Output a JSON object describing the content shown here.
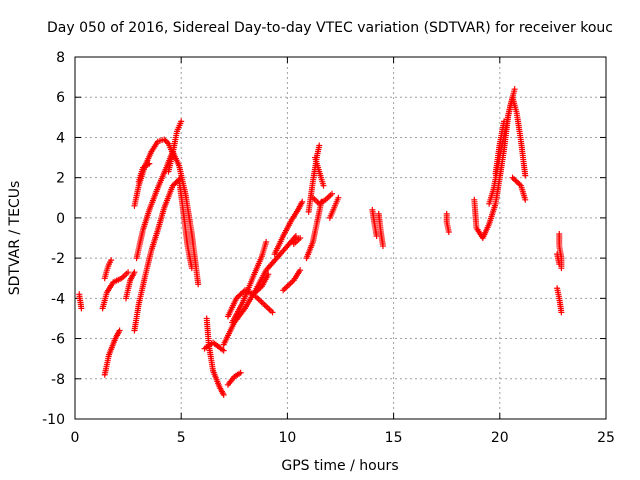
{
  "colors": {
    "background": "#ffffff",
    "axis": "#000000",
    "grid": "#a0a0a0",
    "series": "#ff0000"
  },
  "chart_data": {
    "type": "scatter",
    "title": "Day 050 of 2016, Sidereal Day-to-day VTEC variation (SDTVAR) for receiver kouc",
    "xlabel": "GPS time / hours",
    "ylabel": "SDTVAR / TECUs",
    "xlim": [
      0,
      25
    ],
    "ylim": [
      -10,
      8
    ],
    "xticks": [
      0,
      5,
      10,
      15,
      20,
      25
    ],
    "yticks": [
      -10,
      -8,
      -6,
      -4,
      -2,
      0,
      2,
      4,
      6,
      8
    ],
    "grid": true,
    "marker": "plus",
    "series": [
      {
        "name": "SDTVAR",
        "tracks": [
          [
            [
              0.2,
              -3.8
            ],
            [
              0.3,
              -4.5
            ]
          ],
          [
            [
              1.4,
              -3.0
            ],
            [
              1.5,
              -2.6
            ],
            [
              1.6,
              -2.3
            ],
            [
              1.7,
              -2.1
            ]
          ],
          [
            [
              1.3,
              -4.5
            ],
            [
              1.5,
              -3.7
            ],
            [
              1.8,
              -3.2
            ],
            [
              2.2,
              -3.0
            ],
            [
              2.5,
              -2.7
            ]
          ],
          [
            [
              1.4,
              -7.8
            ],
            [
              1.6,
              -6.8
            ],
            [
              1.9,
              -6.0
            ],
            [
              2.1,
              -5.6
            ]
          ],
          [
            [
              2.4,
              -4.0
            ],
            [
              2.6,
              -3.1
            ],
            [
              2.8,
              -2.7
            ]
          ],
          [
            [
              2.8,
              -5.6
            ],
            [
              3.0,
              -4.3
            ],
            [
              3.3,
              -2.9
            ],
            [
              3.6,
              -1.6
            ],
            [
              3.9,
              -0.6
            ],
            [
              4.2,
              0.5
            ],
            [
              4.6,
              1.6
            ],
            [
              5.0,
              2.0
            ]
          ],
          [
            [
              2.9,
              -2.0
            ],
            [
              3.2,
              -0.6
            ],
            [
              3.5,
              0.4
            ],
            [
              3.9,
              1.5
            ],
            [
              4.3,
              2.5
            ],
            [
              4.6,
              3.3
            ],
            [
              4.9,
              2.6
            ],
            [
              5.2,
              1.2
            ],
            [
              5.5,
              -0.8
            ],
            [
              5.8,
              -3.3
            ]
          ],
          [
            [
              2.8,
              0.6
            ],
            [
              3.0,
              1.6
            ],
            [
              3.3,
              2.6
            ],
            [
              3.6,
              3.3
            ],
            [
              3.9,
              3.8
            ],
            [
              4.2,
              3.9
            ],
            [
              4.4,
              3.7
            ],
            [
              4.6,
              3.2
            ]
          ],
          [
            [
              3.0,
              1.8
            ],
            [
              3.2,
              2.5
            ],
            [
              3.5,
              2.7
            ]
          ],
          [
            [
              4.4,
              2.3
            ],
            [
              4.6,
              3.2
            ],
            [
              4.8,
              4.3
            ],
            [
              5.0,
              4.8
            ]
          ],
          [
            [
              4.9,
              1.9
            ],
            [
              5.1,
              0.3
            ],
            [
              5.3,
              -1.4
            ],
            [
              5.5,
              -2.5
            ]
          ],
          [
            [
              6.2,
              -5.0
            ],
            [
              6.3,
              -6.3
            ],
            [
              6.5,
              -7.6
            ],
            [
              6.8,
              -8.4
            ],
            [
              7.0,
              -8.8
            ]
          ],
          [
            [
              6.1,
              -6.5
            ],
            [
              6.5,
              -6.2
            ],
            [
              7.0,
              -6.6
            ]
          ],
          [
            [
              7.2,
              -8.3
            ],
            [
              7.5,
              -7.9
            ],
            [
              7.8,
              -7.7
            ]
          ],
          [
            [
              7.0,
              -6.3
            ],
            [
              7.5,
              -5.2
            ],
            [
              8.0,
              -4.5
            ],
            [
              8.5,
              -3.6
            ],
            [
              9.0,
              -2.6
            ],
            [
              9.5,
              -2.0
            ],
            [
              10.0,
              -1.4
            ],
            [
              10.4,
              -0.9
            ]
          ],
          [
            [
              7.2,
              -4.9
            ],
            [
              7.6,
              -4.0
            ],
            [
              8.0,
              -3.6
            ],
            [
              8.4,
              -3.8
            ],
            [
              8.8,
              -3.4
            ],
            [
              9.1,
              -2.8
            ]
          ],
          [
            [
              7.4,
              -5.2
            ],
            [
              7.9,
              -4.2
            ],
            [
              8.4,
              -2.9
            ],
            [
              8.8,
              -1.9
            ],
            [
              9.0,
              -1.2
            ]
          ],
          [
            [
              8.5,
              -3.9
            ],
            [
              9.0,
              -4.4
            ],
            [
              9.3,
              -4.7
            ]
          ],
          [
            [
              9.4,
              -1.8
            ],
            [
              9.8,
              -0.9
            ],
            [
              10.2,
              -0.1
            ],
            [
              10.5,
              0.4
            ],
            [
              10.7,
              0.8
            ]
          ],
          [
            [
              9.8,
              -3.6
            ],
            [
              10.3,
              -3.1
            ],
            [
              10.6,
              -2.6
            ]
          ],
          [
            [
              10.3,
              -1.3
            ],
            [
              10.6,
              -1.0
            ]
          ],
          [
            [
              10.9,
              -2.0
            ],
            [
              11.2,
              -1.2
            ],
            [
              11.4,
              -0.2
            ],
            [
              11.6,
              0.8
            ]
          ],
          [
            [
              11.0,
              0.3
            ],
            [
              11.2,
              1.8
            ],
            [
              11.4,
              3.1
            ],
            [
              11.5,
              3.6
            ]
          ],
          [
            [
              11.2,
              1.0
            ],
            [
              11.5,
              0.7
            ],
            [
              11.8,
              0.9
            ],
            [
              12.1,
              1.2
            ]
          ],
          [
            [
              11.3,
              3.0
            ],
            [
              11.5,
              2.3
            ],
            [
              11.7,
              1.6
            ]
          ],
          [
            [
              12.0,
              0.0
            ],
            [
              12.2,
              0.5
            ],
            [
              12.4,
              1.0
            ]
          ],
          [
            [
              14.0,
              0.4
            ],
            [
              14.1,
              -0.3
            ],
            [
              14.2,
              -0.9
            ]
          ],
          [
            [
              14.3,
              0.2
            ],
            [
              14.4,
              -0.7
            ],
            [
              14.5,
              -1.4
            ]
          ],
          [
            [
              17.5,
              0.2
            ],
            [
              17.5,
              -0.2
            ],
            [
              17.6,
              -0.7
            ]
          ],
          [
            [
              18.8,
              0.9
            ],
            [
              18.9,
              -0.5
            ],
            [
              19.2,
              -1.0
            ],
            [
              19.5,
              -0.3
            ],
            [
              19.8,
              0.7
            ],
            [
              20.0,
              2.0
            ],
            [
              20.2,
              3.4
            ],
            [
              20.4,
              5.1
            ],
            [
              20.6,
              6.0
            ],
            [
              20.8,
              5.2
            ],
            [
              21.0,
              3.8
            ],
            [
              21.2,
              2.1
            ]
          ],
          [
            [
              19.5,
              0.7
            ],
            [
              19.7,
              1.4
            ],
            [
              19.9,
              2.5
            ],
            [
              20.1,
              3.6
            ],
            [
              20.3,
              4.6
            ],
            [
              20.5,
              5.6
            ],
            [
              20.7,
              6.4
            ]
          ],
          [
            [
              19.8,
              2.2
            ],
            [
              20.0,
              3.7
            ],
            [
              20.2,
              4.8
            ]
          ],
          [
            [
              20.6,
              2.0
            ],
            [
              20.8,
              1.8
            ],
            [
              21.0,
              1.6
            ],
            [
              21.2,
              0.9
            ]
          ],
          [
            [
              22.8,
              -0.8
            ],
            [
              22.8,
              -1.4
            ],
            [
              22.9,
              -2.0
            ],
            [
              22.9,
              -2.5
            ]
          ],
          [
            [
              22.7,
              -1.8
            ],
            [
              22.8,
              -2.3
            ]
          ],
          [
            [
              22.7,
              -3.5
            ],
            [
              22.8,
              -4.0
            ],
            [
              22.9,
              -4.7
            ]
          ]
        ]
      }
    ]
  }
}
